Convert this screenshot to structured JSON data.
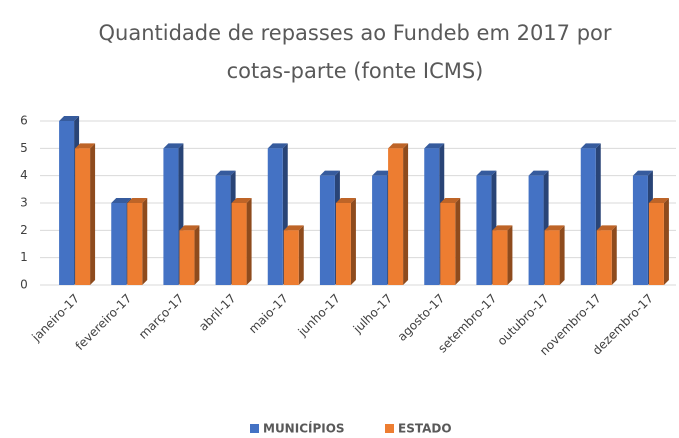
{
  "chart_data": {
    "type": "bar3d",
    "title": [
      "Quantidade de repasses ao Fundeb em 2017 por",
      "cotas-parte (fonte ICMS)"
    ],
    "categories": [
      "janeiro-17",
      "fevereiro-17",
      "março-17",
      "abril-17",
      "maio-17",
      "junho-17",
      "julho-17",
      "agosto-17",
      "setembro-17",
      "outubro-17",
      "novembro-17",
      "dezembro-17"
    ],
    "series": [
      {
        "name": "MUNICÍPIOS",
        "color": "#4472c4",
        "values": [
          6,
          3,
          5,
          4,
          5,
          4,
          4,
          5,
          4,
          4,
          5,
          4
        ]
      },
      {
        "name": "ESTADO",
        "color": "#ed7d31",
        "values": [
          5,
          3,
          2,
          3,
          2,
          3,
          5,
          3,
          2,
          2,
          2,
          3
        ]
      }
    ],
    "ylim": [
      0,
      6
    ],
    "yticks": [
      0,
      1,
      2,
      3,
      4,
      5,
      6
    ],
    "grid": true,
    "legend": "bottom"
  }
}
